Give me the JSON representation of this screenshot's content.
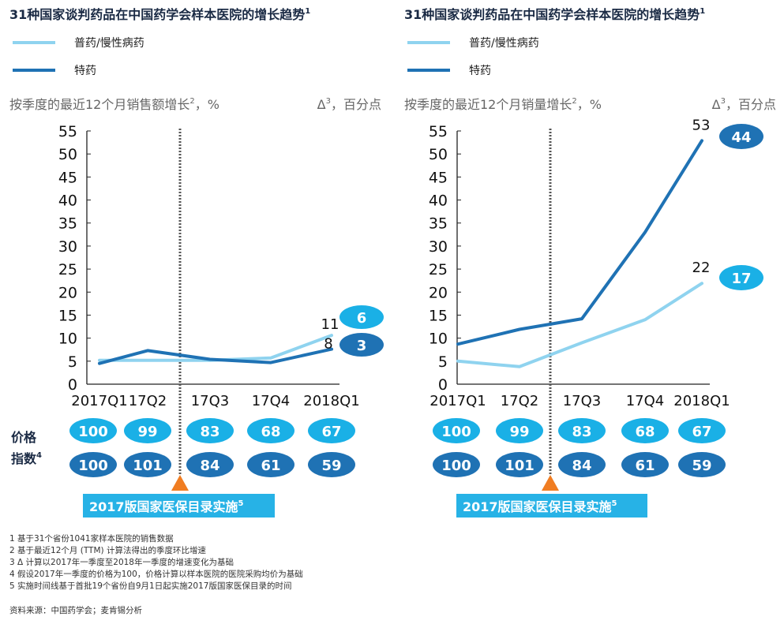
{
  "colors": {
    "light": "#8fd3ef",
    "dark": "#1f72b4",
    "bubble_light": "#1ab0e6",
    "bubble_dark": "#1f72b4",
    "marker": "#f07d22",
    "banner": "#27b2e6"
  },
  "chart_data": [
    {
      "type": "line",
      "title": "31种国家谈判药品在中国药学会样本医院的增长趋势",
      "title_sup": "1",
      "ylabel": "按季度的最近12个月销售额增长",
      "ylabel_sup": "2",
      "ylabel_unit": "，%",
      "delta_label": "Δ",
      "delta_sup": "3",
      "delta_unit": "，百分点",
      "categories": [
        "2017Q1",
        "17Q2",
        "17Q3",
        "17Q4",
        "2018Q1"
      ],
      "ylim": [
        0,
        55
      ],
      "yticks": [
        0,
        5,
        10,
        15,
        20,
        25,
        30,
        35,
        40,
        45,
        50,
        55
      ],
      "series": [
        {
          "name": "普药/慢性病药",
          "values": [
            5.2,
            5.2,
            5.2,
            5.7,
            10.6
          ],
          "end_label": "11",
          "delta": "6"
        },
        {
          "name": "特药",
          "values": [
            4.5,
            7.3,
            5.4,
            4.7,
            7.6
          ],
          "end_label": "8",
          "delta": "3"
        }
      ],
      "event_label": "2017版国家医保目录实施",
      "event_sup": "5",
      "price_index_label": [
        "价格",
        "指数"
      ],
      "price_index_sup": "4",
      "price_rows": [
        [
          "100",
          "99",
          "83",
          "68",
          "67"
        ],
        [
          "100",
          "101",
          "84",
          "61",
          "59"
        ]
      ]
    },
    {
      "type": "line",
      "title": "31种国家谈判药品在中国药学会样本医院的增长趋势",
      "title_sup": "1",
      "ylabel": "按季度的最近12个月销量增长",
      "ylabel_sup": "2",
      "ylabel_unit": "，%",
      "delta_label": "Δ",
      "delta_sup": "3",
      "delta_unit": "，百分点",
      "categories": [
        "2017Q1",
        "17Q2",
        "17Q3",
        "17Q4",
        "2018Q1"
      ],
      "ylim": [
        0,
        55
      ],
      "yticks": [
        0,
        5,
        10,
        15,
        20,
        25,
        30,
        35,
        40,
        45,
        50,
        55
      ],
      "series": [
        {
          "name": "普药/慢性病药",
          "values": [
            5.0,
            3.8,
            9.0,
            14.0,
            21.9
          ],
          "end_label": "22",
          "delta": "17"
        },
        {
          "name": "特药",
          "values": [
            8.7,
            11.9,
            14.2,
            33.0,
            52.9
          ],
          "end_label": "53",
          "delta": "44"
        }
      ],
      "event_label": "2017版国家医保目录实施",
      "event_sup": "5",
      "price_rows": [
        [
          "100",
          "99",
          "83",
          "68",
          "67"
        ],
        [
          "100",
          "101",
          "84",
          "61",
          "59"
        ]
      ]
    }
  ],
  "footnotes": [
    "1 基于31个省份1041家样本医院的销售数据",
    "2 基于最近12个月 (TTM) 计算法得出的季度环比增速",
    "3 Δ 计算以2017年一季度至2018年一季度的增速变化为基础",
    "4 假设2017年一季度的价格为100，价格计算以样本医院的医院采购均价为基础",
    "5 实施时间线基于首批19个省份自9月1日起实施2017版国家医保目录的时间"
  ],
  "source": "资料来源：中国药学会；麦肯锡分析"
}
